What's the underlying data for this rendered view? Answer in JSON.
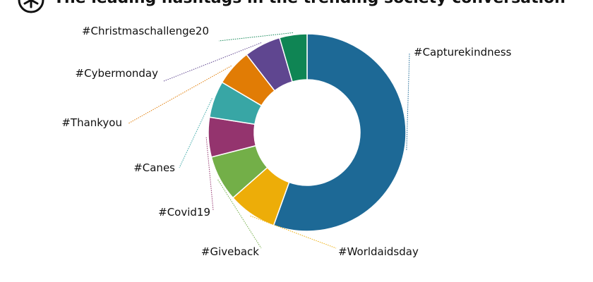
{
  "title": "The leading hashtags in the trending society conversation",
  "logo_icon": "asterisk-logo-icon",
  "chart_data": {
    "type": "pie",
    "donut": true,
    "title": "The leading hashtags in the trending society conversation",
    "unit": "share of conversation (%)",
    "slices": [
      {
        "label": "#Capturekindness",
        "value": 55.5,
        "color": "#1d6996"
      },
      {
        "label": "#Worldaidsday",
        "value": 8.0,
        "color": "#edad08"
      },
      {
        "label": "#Giveback",
        "value": 7.5,
        "color": "#73af48"
      },
      {
        "label": "#Covid19",
        "value": 6.5,
        "color": "#94346e"
      },
      {
        "label": "#Canes",
        "value": 6.0,
        "color": "#38a6a5"
      },
      {
        "label": "#Thankyou",
        "value": 6.0,
        "color": "#e17c05"
      },
      {
        "label": "#Cybermonday",
        "value": 6.0,
        "color": "#5f4690"
      },
      {
        "label": "#Christmaschallenge20",
        "value": 4.5,
        "color": "#0f8554"
      }
    ]
  }
}
